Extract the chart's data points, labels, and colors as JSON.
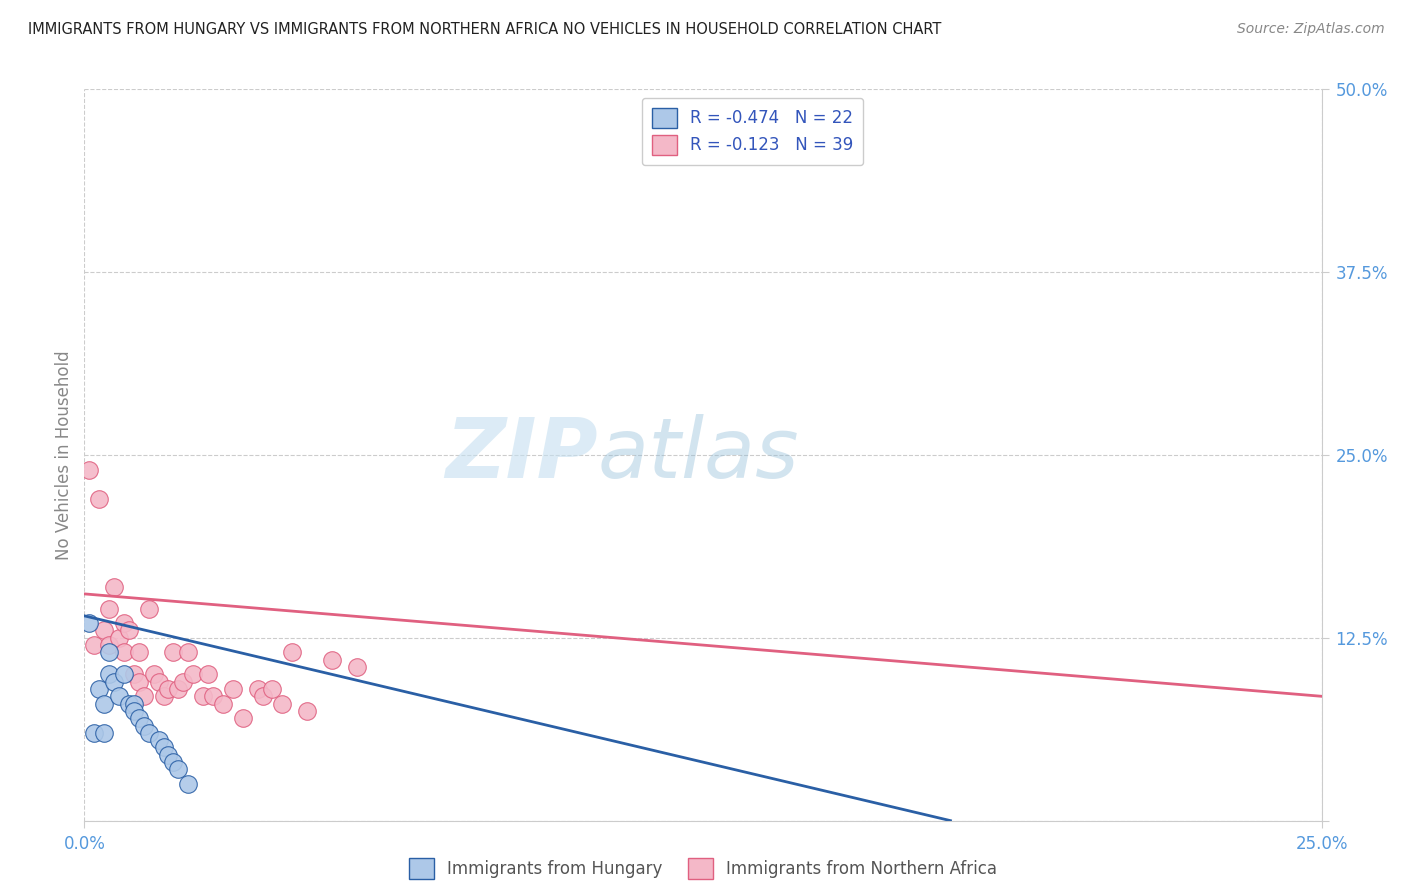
{
  "title": "IMMIGRANTS FROM HUNGARY VS IMMIGRANTS FROM NORTHERN AFRICA NO VEHICLES IN HOUSEHOLD CORRELATION CHART",
  "source": "Source: ZipAtlas.com",
  "ylabel": "No Vehicles in Household",
  "y_tick_labels": [
    "",
    "12.5%",
    "25.0%",
    "37.5%",
    "50.0%"
  ],
  "y_tick_values": [
    0,
    0.125,
    0.25,
    0.375,
    0.5
  ],
  "xlim": [
    0.0,
    0.25
  ],
  "ylim": [
    0.0,
    0.5
  ],
  "blue_color": "#adc8e8",
  "blue_line_color": "#2a5fa5",
  "pink_color": "#f4b8c8",
  "pink_line_color": "#e06080",
  "legend_r_blue": "R = -0.474",
  "legend_n_blue": "N = 22",
  "legend_r_pink": "R = -0.123",
  "legend_n_pink": "N = 39",
  "legend_label_blue": "Immigrants from Hungary",
  "legend_label_pink": "Immigrants from Northern Africa",
  "watermark_zip": "ZIP",
  "watermark_atlas": "atlas",
  "hungary_x": [
    0.001,
    0.002,
    0.003,
    0.004,
    0.004,
    0.005,
    0.005,
    0.006,
    0.007,
    0.008,
    0.009,
    0.01,
    0.01,
    0.011,
    0.012,
    0.013,
    0.015,
    0.016,
    0.017,
    0.018,
    0.019,
    0.021
  ],
  "hungary_y": [
    0.135,
    0.06,
    0.09,
    0.08,
    0.06,
    0.115,
    0.1,
    0.095,
    0.085,
    0.1,
    0.08,
    0.08,
    0.075,
    0.07,
    0.065,
    0.06,
    0.055,
    0.05,
    0.045,
    0.04,
    0.035,
    0.025
  ],
  "n_africa_x": [
    0.001,
    0.002,
    0.003,
    0.004,
    0.005,
    0.005,
    0.006,
    0.007,
    0.008,
    0.008,
    0.009,
    0.01,
    0.011,
    0.011,
    0.012,
    0.013,
    0.014,
    0.015,
    0.016,
    0.017,
    0.018,
    0.019,
    0.02,
    0.021,
    0.022,
    0.024,
    0.025,
    0.026,
    0.028,
    0.03,
    0.032,
    0.035,
    0.036,
    0.038,
    0.04,
    0.042,
    0.045,
    0.05,
    0.055
  ],
  "n_africa_y": [
    0.24,
    0.12,
    0.22,
    0.13,
    0.145,
    0.12,
    0.16,
    0.125,
    0.135,
    0.115,
    0.13,
    0.1,
    0.095,
    0.115,
    0.085,
    0.145,
    0.1,
    0.095,
    0.085,
    0.09,
    0.115,
    0.09,
    0.095,
    0.115,
    0.1,
    0.085,
    0.1,
    0.085,
    0.08,
    0.09,
    0.07,
    0.09,
    0.085,
    0.09,
    0.08,
    0.115,
    0.075,
    0.11,
    0.105
  ],
  "blue_line_x": [
    0.0,
    0.175
  ],
  "blue_line_y": [
    0.14,
    0.0
  ],
  "pink_line_x": [
    0.0,
    0.25
  ],
  "pink_line_y": [
    0.155,
    0.085
  ]
}
